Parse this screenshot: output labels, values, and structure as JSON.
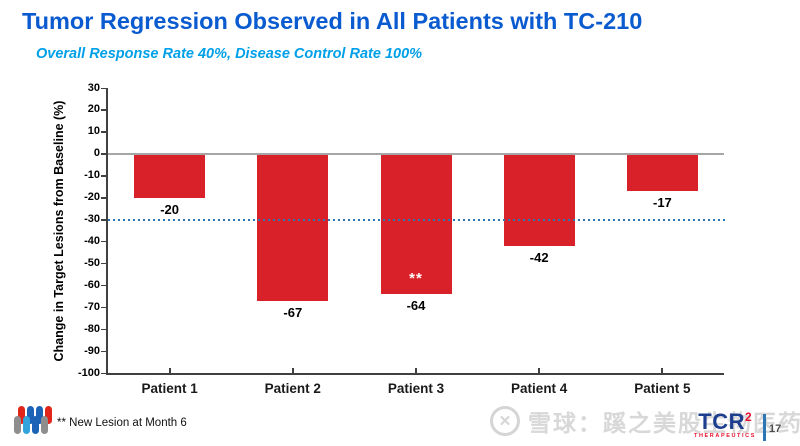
{
  "slide": {
    "title": "Tumor Regression Observed in All Patients with TC-210",
    "subtitle": "Overall Response Rate 40%, Disease Control Rate 100%",
    "footnote": "** New Lesion at Month 6",
    "page_number": "17",
    "brand_logo": {
      "text": "TCR",
      "superscript": "2",
      "subtext": "THERAPEUTICS"
    },
    "watermark": {
      "icon": "xueqiu-logo",
      "icon_glyph": "✕",
      "text": "雪球：蹊之美股生物医药"
    }
  },
  "chart_data": {
    "type": "bar",
    "title": "",
    "categories": [
      "Patient 1",
      "Patient 2",
      "Patient 3",
      "Patient 4",
      "Patient 5"
    ],
    "values": [
      -20,
      -67,
      -64,
      -42,
      -17
    ],
    "bar_labels": [
      "-20",
      "-67",
      "-64",
      "-42",
      "-17"
    ],
    "annotations": [
      {
        "category_index": 2,
        "text": "**",
        "meaning": "New Lesion at Month 6",
        "color": "#ffffff"
      }
    ],
    "xlabel": "",
    "ylabel": "Change in Target Lesions from Baseline (%)",
    "ylim": [
      -100,
      30
    ],
    "ytick_step": 10,
    "reference_line": {
      "value": -30,
      "style": "dotted",
      "color": "#2E75B6"
    },
    "bar_color": "#D92129",
    "grid": false,
    "legend": "none"
  },
  "colors": {
    "title_blue": "#0A5BD0",
    "subtitle_blue": "#00A0E9",
    "bar_red": "#D92129",
    "reference_blue": "#2E75B6",
    "axis_dark": "#404040",
    "zero_line_gray": "#A6A6A6",
    "brand_navy": "#1D3E8F",
    "brand_red": "#E8112D",
    "watermark_gray": "#d5d5d5"
  }
}
